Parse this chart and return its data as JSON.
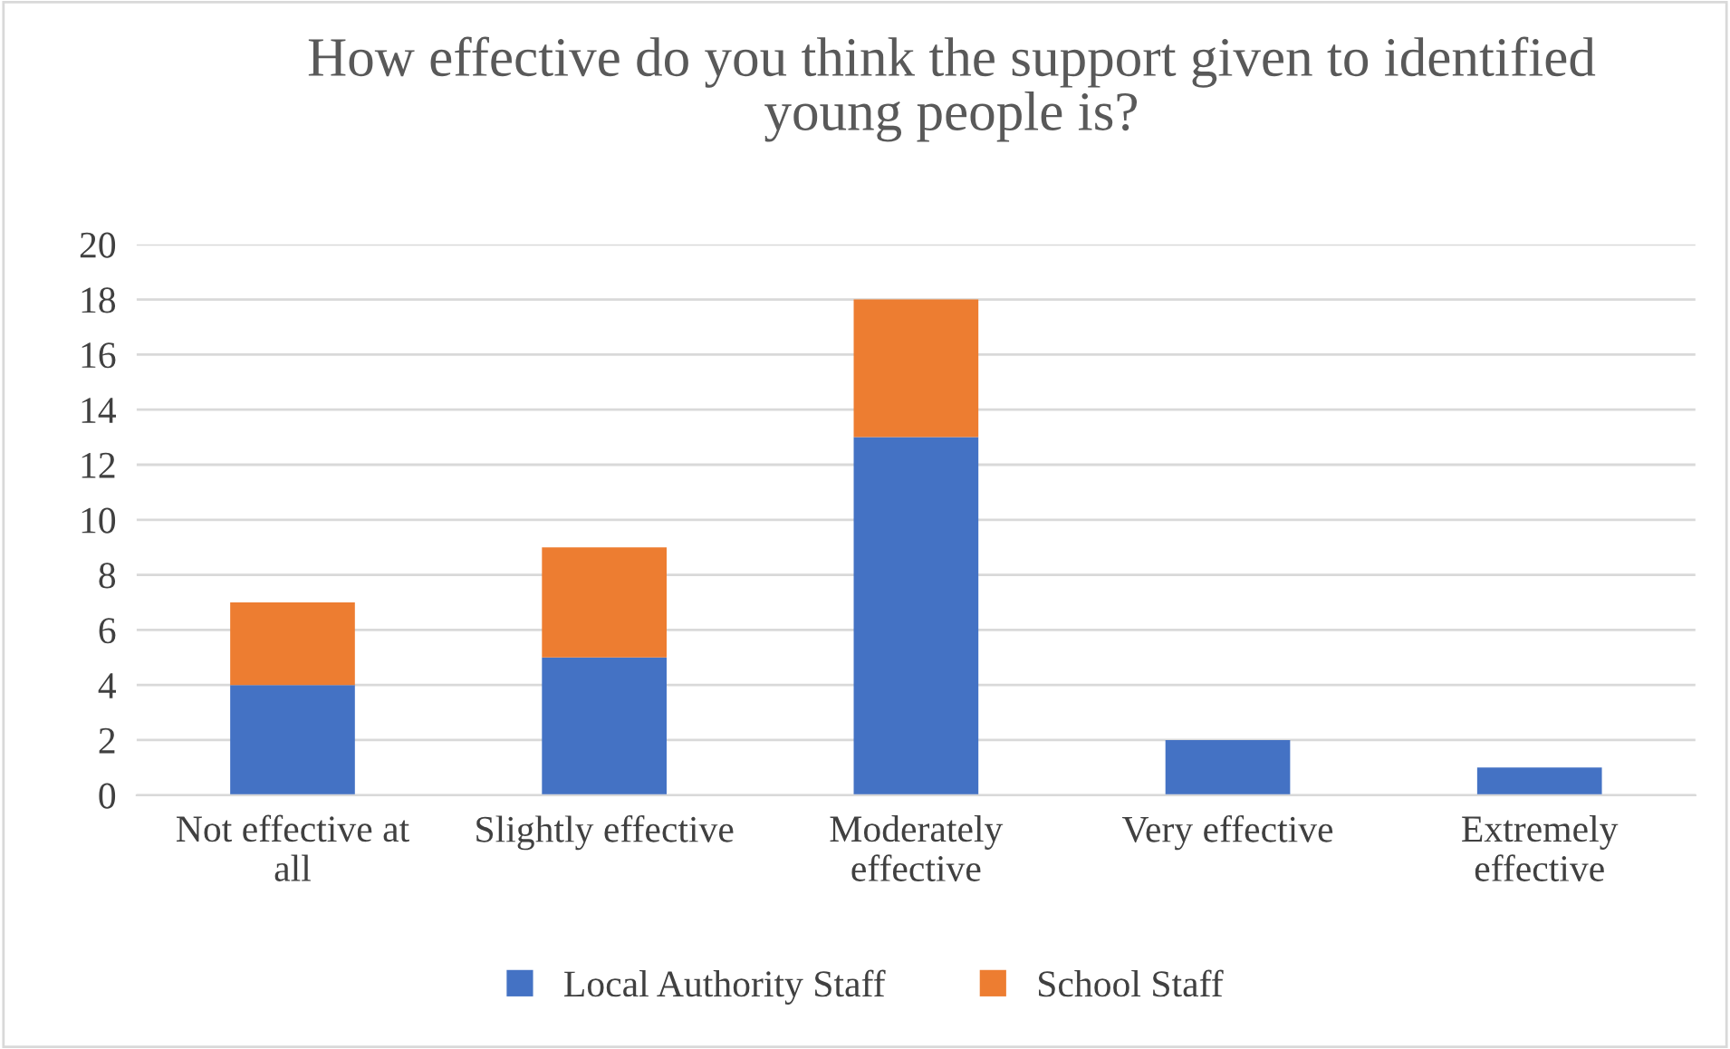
{
  "chart_data": {
    "type": "bar",
    "title": "How effective do you think the support given to identified\nyoung people is?",
    "categories": [
      "Not effective at\nall",
      "Slightly effective",
      "Moderately\neffective",
      "Very effective",
      "Extremely\neffective"
    ],
    "series": [
      {
        "name": "Local Authority Staff",
        "color": "#4472c4",
        "values": [
          4,
          5,
          13,
          2,
          1
        ]
      },
      {
        "name": "School Staff",
        "color": "#ed7d31",
        "values": [
          3,
          4,
          5,
          0,
          0
        ]
      }
    ],
    "stacked": true,
    "ylim": [
      0,
      20
    ],
    "yticks": [
      0,
      2,
      4,
      6,
      8,
      10,
      12,
      14,
      16,
      18,
      20
    ],
    "grid": "y",
    "legend": "bottom"
  }
}
